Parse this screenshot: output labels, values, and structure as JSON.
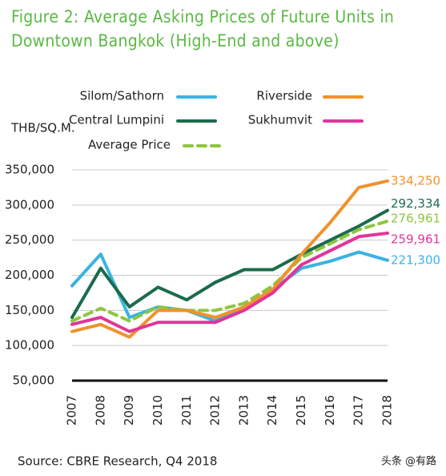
{
  "chart_data": {
    "type": "line",
    "title": "Figure 2: Average Asking Prices of Future Units in Downtown Bangkok (High-End and above)",
    "y_label": "THB/SQ.M.",
    "source": "Source: CBRE Research, Q4 2018",
    "watermark": "头条 @有路",
    "categories": [
      "2007",
      "2008",
      "2009",
      "2010",
      "2011",
      "2012",
      "2013",
      "2014",
      "2015",
      "2016",
      "2017",
      "2018"
    ],
    "ylim": [
      50000,
      350000
    ],
    "yticks": [
      {
        "value": 50000,
        "label": "50,000"
      },
      {
        "value": 100000,
        "label": "100,000"
      },
      {
        "value": 150000,
        "label": "150,000"
      },
      {
        "value": 200000,
        "label": "200,000"
      },
      {
        "value": 250000,
        "label": "250,000"
      },
      {
        "value": 300000,
        "label": "300,000"
      },
      {
        "value": 350000,
        "label": "350,000"
      }
    ],
    "grid": true,
    "series": [
      {
        "name": "Silom/Sathorn",
        "color": "#3bb3e0",
        "style": "solid",
        "values": [
          185000,
          230000,
          140000,
          155000,
          150000,
          135000,
          155000,
          180000,
          210000,
          220000,
          233000,
          221300
        ],
        "value_labels": [
          null,
          null,
          null,
          null,
          null,
          null,
          null,
          null,
          null,
          null,
          null,
          "221,300"
        ]
      },
      {
        "name": "Central Lumpini",
        "color": "#1b6b4b",
        "style": "solid",
        "values": [
          140000,
          210000,
          155000,
          183000,
          165000,
          190000,
          208000,
          208000,
          230000,
          250000,
          270000,
          292334
        ],
        "value_labels": [
          null,
          null,
          null,
          null,
          null,
          null,
          null,
          null,
          null,
          null,
          null,
          "292,334"
        ]
      },
      {
        "name": "Average Price",
        "color": "#8dc63f",
        "style": "dashed",
        "values": [
          135000,
          153000,
          135000,
          155000,
          150000,
          150000,
          160000,
          185000,
          225000,
          245000,
          265000,
          276961
        ],
        "value_labels": [
          null,
          null,
          null,
          null,
          null,
          null,
          null,
          null,
          null,
          null,
          null,
          "276,961"
        ]
      },
      {
        "name": "Riverside",
        "color": "#f0922b",
        "style": "solid",
        "values": [
          120000,
          130000,
          112000,
          150000,
          150000,
          140000,
          155000,
          180000,
          230000,
          275000,
          325000,
          334250
        ],
        "value_labels": [
          null,
          null,
          null,
          null,
          null,
          null,
          null,
          null,
          null,
          null,
          null,
          "334,250"
        ]
      },
      {
        "name": "Sukhumvit",
        "color": "#e0359a",
        "style": "solid",
        "values": [
          130000,
          140000,
          120000,
          133000,
          133000,
          133000,
          150000,
          175000,
          215000,
          235000,
          255000,
          259961
        ],
        "value_labels": [
          null,
          null,
          null,
          null,
          null,
          null,
          null,
          null,
          null,
          null,
          null,
          "259,961"
        ]
      }
    ]
  }
}
